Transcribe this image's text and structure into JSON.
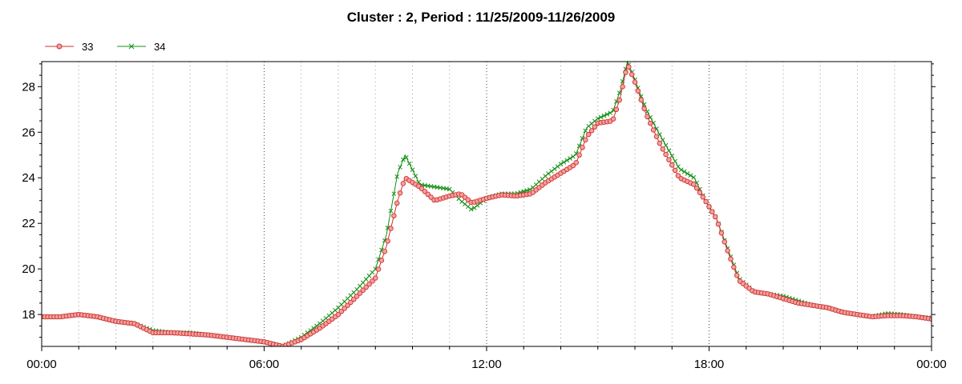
{
  "chart_data": {
    "type": "line",
    "title": "Cluster : 2, Period : 11/25/2009-11/26/2009",
    "xlabel": "",
    "ylabel": "",
    "x_unit": "hours",
    "xlim": [
      0,
      24
    ],
    "ylim": [
      16.6,
      29.1
    ],
    "x_ticks": [
      0,
      6,
      12,
      18,
      24
    ],
    "x_tick_labels": [
      "00:00",
      "06:00",
      "12:00",
      "18:00",
      "00:00"
    ],
    "y_ticks": [
      18,
      20,
      22,
      24,
      26,
      28
    ],
    "y_tick_labels": [
      "18",
      "20",
      "22",
      "24",
      "26",
      "28"
    ],
    "grid": "dotted vertical lines every hour, heavier at 06:00, 12:00, 18:00",
    "legend_placement": "top-left",
    "series": [
      {
        "name": "33",
        "color": "#d03030",
        "marker": "circle",
        "points": [
          [
            0,
            17.9
          ],
          [
            0.5,
            17.9
          ],
          [
            1.0,
            18.0
          ],
          [
            1.5,
            17.9
          ],
          [
            2.0,
            17.7
          ],
          [
            2.5,
            17.6
          ],
          [
            3.0,
            17.2
          ],
          [
            3.5,
            17.2
          ],
          [
            4.0,
            17.15
          ],
          [
            4.5,
            17.1
          ],
          [
            5.0,
            17.0
          ],
          [
            5.5,
            16.9
          ],
          [
            6.0,
            16.8
          ],
          [
            6.5,
            16.6
          ],
          [
            7.0,
            16.9
          ],
          [
            7.5,
            17.4
          ],
          [
            8.0,
            18.0
          ],
          [
            8.5,
            18.8
          ],
          [
            9.0,
            19.6
          ],
          [
            9.3,
            21.0
          ],
          [
            9.6,
            23.0
          ],
          [
            9.8,
            24.0
          ],
          [
            10.2,
            23.6
          ],
          [
            10.6,
            23.0
          ],
          [
            11.0,
            23.2
          ],
          [
            11.3,
            23.3
          ],
          [
            11.6,
            22.9
          ],
          [
            12.0,
            23.1
          ],
          [
            12.4,
            23.25
          ],
          [
            12.8,
            23.2
          ],
          [
            13.2,
            23.3
          ],
          [
            13.6,
            23.8
          ],
          [
            14.0,
            24.2
          ],
          [
            14.4,
            24.6
          ],
          [
            14.7,
            25.8
          ],
          [
            15.0,
            26.4
          ],
          [
            15.4,
            26.5
          ],
          [
            15.6,
            27.5
          ],
          [
            15.8,
            29.0
          ],
          [
            16.0,
            28.2
          ],
          [
            16.3,
            26.8
          ],
          [
            16.7,
            25.4
          ],
          [
            17.2,
            24.0
          ],
          [
            17.6,
            23.7
          ],
          [
            17.9,
            23.0
          ],
          [
            18.2,
            22.2
          ],
          [
            18.5,
            20.8
          ],
          [
            18.8,
            19.5
          ],
          [
            19.2,
            19.0
          ],
          [
            19.6,
            18.9
          ],
          [
            20.0,
            18.7
          ],
          [
            20.4,
            18.5
          ],
          [
            20.8,
            18.4
          ],
          [
            21.2,
            18.3
          ],
          [
            21.6,
            18.1
          ],
          [
            22.0,
            18.0
          ],
          [
            22.4,
            17.9
          ],
          [
            22.8,
            17.95
          ],
          [
            23.2,
            17.95
          ],
          [
            23.6,
            17.9
          ],
          [
            24.0,
            17.8
          ]
        ]
      },
      {
        "name": "34",
        "color": "#138f13",
        "marker": "x",
        "points": [
          [
            0,
            17.9
          ],
          [
            0.5,
            17.9
          ],
          [
            1.0,
            18.0
          ],
          [
            1.5,
            17.9
          ],
          [
            2.0,
            17.7
          ],
          [
            2.5,
            17.6
          ],
          [
            3.0,
            17.3
          ],
          [
            3.5,
            17.2
          ],
          [
            4.0,
            17.2
          ],
          [
            4.5,
            17.1
          ],
          [
            5.0,
            17.0
          ],
          [
            5.5,
            16.9
          ],
          [
            6.0,
            16.8
          ],
          [
            6.5,
            16.6
          ],
          [
            7.0,
            17.0
          ],
          [
            7.5,
            17.6
          ],
          [
            8.0,
            18.3
          ],
          [
            8.5,
            19.1
          ],
          [
            9.0,
            20.0
          ],
          [
            9.3,
            21.5
          ],
          [
            9.6,
            24.2
          ],
          [
            9.8,
            25.0
          ],
          [
            10.2,
            23.7
          ],
          [
            10.6,
            23.6
          ],
          [
            11.0,
            23.5
          ],
          [
            11.3,
            23.0
          ],
          [
            11.6,
            22.6
          ],
          [
            12.0,
            23.1
          ],
          [
            12.4,
            23.3
          ],
          [
            12.8,
            23.3
          ],
          [
            13.2,
            23.5
          ],
          [
            13.6,
            24.1
          ],
          [
            14.0,
            24.6
          ],
          [
            14.4,
            25.0
          ],
          [
            14.7,
            26.2
          ],
          [
            15.0,
            26.6
          ],
          [
            15.4,
            26.9
          ],
          [
            15.6,
            27.8
          ],
          [
            15.8,
            29.1
          ],
          [
            16.0,
            28.3
          ],
          [
            16.3,
            27.0
          ],
          [
            16.7,
            25.8
          ],
          [
            17.2,
            24.4
          ],
          [
            17.6,
            24.0
          ],
          [
            17.9,
            23.0
          ],
          [
            18.2,
            22.2
          ],
          [
            18.5,
            20.9
          ],
          [
            18.8,
            19.6
          ],
          [
            19.2,
            19.0
          ],
          [
            19.6,
            18.9
          ],
          [
            20.0,
            18.8
          ],
          [
            20.4,
            18.6
          ],
          [
            20.8,
            18.4
          ],
          [
            21.2,
            18.3
          ],
          [
            21.6,
            18.1
          ],
          [
            22.0,
            18.0
          ],
          [
            22.4,
            17.9
          ],
          [
            22.8,
            18.05
          ],
          [
            23.2,
            18.0
          ],
          [
            23.6,
            17.9
          ],
          [
            24.0,
            17.85
          ]
        ]
      }
    ]
  }
}
